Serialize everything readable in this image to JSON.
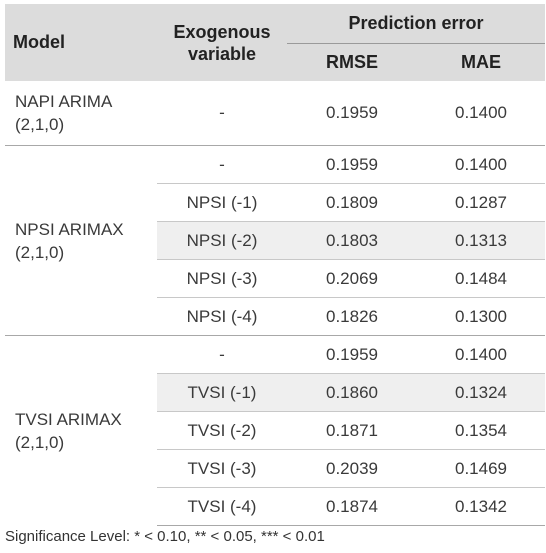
{
  "table": {
    "header": {
      "model": "Model",
      "exogenous": "Exogenous variable",
      "prediction_error": "Prediction error",
      "rmse": "RMSE",
      "mae": "MAE"
    },
    "groups": [
      {
        "model": "NAPI ARIMA (2,1,0)",
        "rows": [
          {
            "exo": "-",
            "rmse": "0.1959",
            "mae": "0.1400"
          }
        ]
      },
      {
        "model": "NPSI ARIMAX (2,1,0)",
        "rows": [
          {
            "exo": "-",
            "rmse": "0.1959",
            "mae": "0.1400"
          },
          {
            "exo": "NPSI (-1)",
            "rmse": "0.1809",
            "mae": "0.1287"
          },
          {
            "exo": "NPSI (-2)",
            "rmse": "0.1803",
            "mae": "0.1313"
          },
          {
            "exo": "NPSI (-3)",
            "rmse": "0.2069",
            "mae": "0.1484"
          },
          {
            "exo": "NPSI (-4)",
            "rmse": "0.1826",
            "mae": "0.1300"
          }
        ]
      },
      {
        "model": "TVSI ARIMAX (2,1,0)",
        "rows": [
          {
            "exo": "-",
            "rmse": "0.1959",
            "mae": "0.1400"
          },
          {
            "exo": "TVSI (-1)",
            "rmse": "0.1860",
            "mae": "0.1324"
          },
          {
            "exo": "TVSI (-2)",
            "rmse": "0.1871",
            "mae": "0.1354"
          },
          {
            "exo": "TVSI (-3)",
            "rmse": "0.2039",
            "mae": "0.1469"
          },
          {
            "exo": "TVSI (-4)",
            "rmse": "0.1874",
            "mae": "0.1342"
          }
        ]
      }
    ]
  },
  "footnote": "Significance Level: * < 0.10, ** < 0.05, *** < 0.01",
  "colors": {
    "header_bg": "#dcdcdc",
    "shaded_row": "#efefef",
    "text": "#333333"
  }
}
